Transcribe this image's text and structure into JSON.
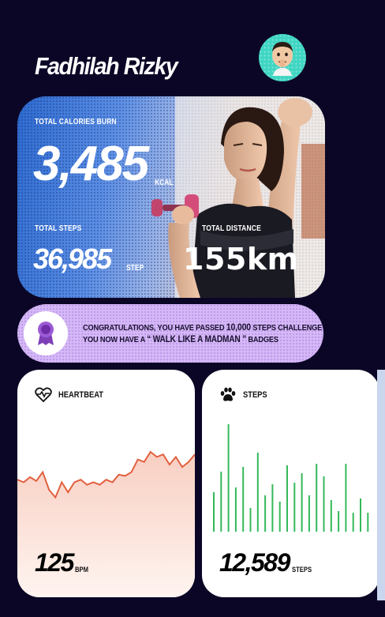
{
  "user": {
    "name": "Fadhilah Rizky",
    "avatar_icon": "memoji-avatar-icon"
  },
  "hero": {
    "calories_label": "TOTAL CALORIES BURN",
    "calories_value": "3,485",
    "calories_unit": "KCAL",
    "steps_label": "TOTAL STEPS",
    "steps_value": "36,985",
    "steps_unit": "STEP",
    "distance_label": "TOTAL DISTANCE",
    "distance_value": "155km"
  },
  "banner": {
    "icon": "medal-ribbon-icon",
    "line1_prefix": "CONGRATULATIONS, YOU HAVE PASSED ",
    "line1_bold": "10,000",
    "line1_suffix": " STEPS CHALLENGE",
    "line2_prefix": "YOU NOW HAVE A ",
    "line2_bold": "“ WALK LIKE A MADMAN ”",
    "line2_suffix": " BADGES"
  },
  "heartbeat": {
    "title": "HEARTBEAT",
    "icon": "heartbeat-icon",
    "value": "125",
    "unit": "BPM",
    "color": "#e2603f"
  },
  "steps": {
    "title": "STEPS",
    "icon": "paw-icon",
    "value": "12,589",
    "unit": "STEPS",
    "color": "#35b85a"
  },
  "chart_data": [
    {
      "type": "line",
      "series": [
        {
          "values": [
            38,
            36,
            40,
            37,
            44,
            30,
            24,
            36,
            28,
            36,
            38,
            34,
            36,
            34,
            38,
            36,
            42,
            41,
            44,
            54,
            52,
            60,
            56,
            58,
            50,
            56,
            48,
            52,
            58
          ]
        }
      ],
      "ylim": [
        0,
        100
      ]
    },
    {
      "type": "bar",
      "values": [
        25,
        38,
        68,
        28,
        41,
        15,
        50,
        23,
        30,
        19,
        42,
        31,
        37,
        23,
        43,
        35,
        20,
        13,
        43,
        12,
        21,
        12
      ],
      "ylim": [
        0,
        70
      ]
    }
  ]
}
